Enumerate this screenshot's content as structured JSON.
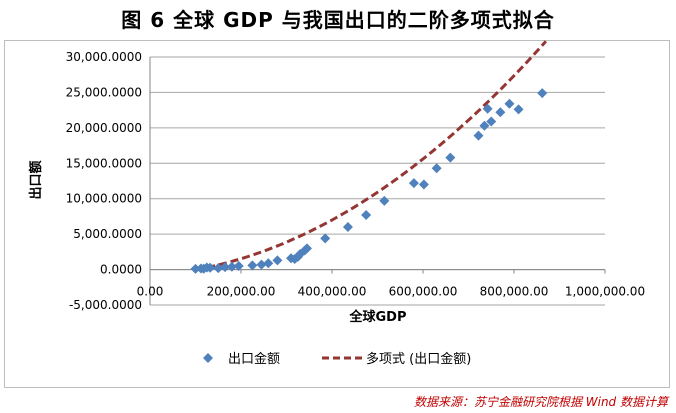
{
  "title": "图 6 全球 GDP 与我国出口的二阶多项式拟合",
  "source_note": "数据来源：苏宁金融研究院根据 Wind 数据计算",
  "chart_data": {
    "type": "scatter",
    "title": "",
    "xlabel": "全球GDP",
    "ylabel": "出口额",
    "xlim": [
      0,
      1000000
    ],
    "ylim": [
      -5000,
      30000
    ],
    "x_ticks": [
      0,
      200000,
      400000,
      600000,
      800000,
      1000000
    ],
    "y_ticks": [
      -5000,
      0,
      5000,
      10000,
      15000,
      20000,
      25000,
      30000
    ],
    "x_tick_labels": [
      "0.00",
      "200,000.00",
      "400,000.00",
      "600,000.00",
      "800,000.00",
      "1,000,000.00"
    ],
    "y_tick_labels": [
      "-5,000.0000",
      "0.0000",
      "5,000.0000",
      "10,000.0000",
      "15,000.0000",
      "20,000.0000",
      "25,000.0000",
      "30,000.0000"
    ],
    "grid": "horizontal",
    "legend_position": "bottom",
    "series": [
      {
        "name": "出口金额",
        "marker": "diamond",
        "color": "#4f81bd",
        "x": [
          100000,
          112000,
          118000,
          125000,
          132000,
          150000,
          165000,
          180000,
          195000,
          225000,
          245000,
          260000,
          280000,
          310000,
          318000,
          325000,
          330000,
          340000,
          345000,
          385000,
          435000,
          475000,
          515000,
          580000,
          602000,
          630000,
          660000,
          722000,
          735000,
          742000,
          750000,
          770000,
          790000,
          810000,
          862000
        ],
        "y": [
          100,
          150,
          120,
          300,
          250,
          200,
          350,
          400,
          500,
          600,
          700,
          900,
          1300,
          1600,
          1500,
          1800,
          2200,
          2700,
          3000,
          4400,
          6000,
          7700,
          9700,
          12200,
          12000,
          14300,
          15800,
          18900,
          20300,
          22700,
          20900,
          22200,
          23400,
          22600,
          24900
        ]
      },
      {
        "name": "多项式 (出口金额)",
        "type": "line",
        "style": "dashed",
        "color": "#943634",
        "poly_coeffs": [
          3.925e-08,
          0.0038,
          -800
        ],
        "x_range": [
          100000,
          870000
        ]
      }
    ]
  }
}
